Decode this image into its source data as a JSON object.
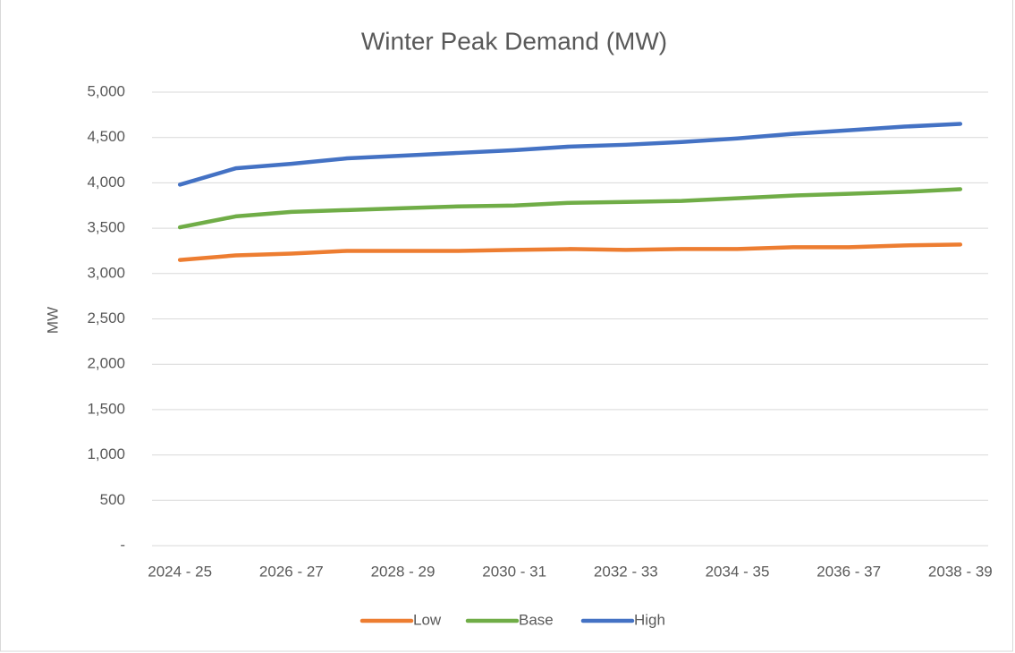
{
  "chart_data": {
    "type": "line",
    "title": "Winter Peak Demand (MW)",
    "y_label": "MW",
    "categories": [
      "2024 - 25",
      null,
      "2026 - 27",
      null,
      "2028 - 29",
      null,
      "2030 - 31",
      null,
      "2032 - 33",
      null,
      "2034 - 35",
      null,
      "2036 - 37",
      null,
      "2038 - 39"
    ],
    "series": [
      {
        "name": "Low",
        "color": "#ed7d31",
        "values": [
          3150,
          3200,
          3220,
          3250,
          3250,
          3250,
          3260,
          3270,
          3260,
          3270,
          3270,
          3290,
          3290,
          3310,
          3320
        ]
      },
      {
        "name": "Base",
        "color": "#70ad47",
        "values": [
          3510,
          3630,
          3680,
          3700,
          3720,
          3740,
          3750,
          3780,
          3790,
          3800,
          3830,
          3860,
          3880,
          3900,
          3930
        ]
      },
      {
        "name": "High",
        "color": "#4472c4",
        "values": [
          3980,
          4160,
          4210,
          4270,
          4300,
          4330,
          4360,
          4400,
          4420,
          4450,
          4490,
          4540,
          4580,
          4620,
          4650
        ]
      }
    ],
    "ylim": [
      0,
      5000
    ],
    "yticks": [
      {
        "value": 0,
        "label": "-"
      },
      500,
      {
        "value": 1000,
        "label": "1,000"
      },
      {
        "value": 1500,
        "label": "1,500"
      },
      {
        "value": 2000,
        "label": "2,000"
      },
      {
        "value": 2500,
        "label": "2,500"
      },
      {
        "value": 3000,
        "label": "3,000"
      },
      {
        "value": 3500,
        "label": "3,500"
      },
      {
        "value": 4000,
        "label": "4,000"
      },
      {
        "value": 4500,
        "label": "4,500"
      },
      {
        "value": 5000,
        "label": "5,000"
      }
    ],
    "grid": true,
    "legend": "bottom"
  }
}
